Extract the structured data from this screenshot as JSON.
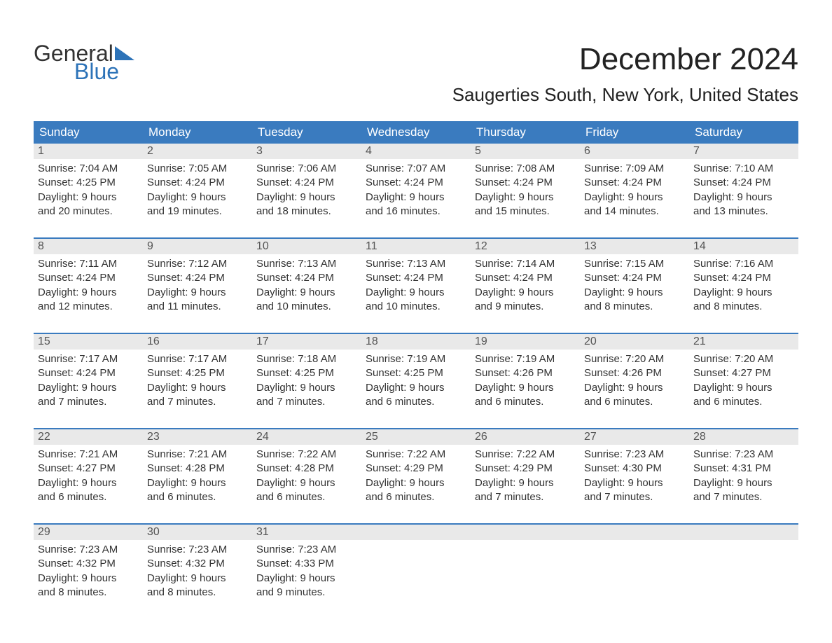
{
  "logo": {
    "text_top": "General",
    "text_bottom": "Blue",
    "flag_color": "#2d73b8"
  },
  "title": "December 2024",
  "location": "Saugerties South, New York, United States",
  "colors": {
    "header_bg": "#3a7bbf",
    "header_text": "#ffffff",
    "daynum_bg": "#e9e9e9",
    "week_border": "#3a7bbf",
    "body_text": "#333333"
  },
  "day_names": [
    "Sunday",
    "Monday",
    "Tuesday",
    "Wednesday",
    "Thursday",
    "Friday",
    "Saturday"
  ],
  "weeks": [
    [
      {
        "n": "1",
        "sr": "Sunrise: 7:04 AM",
        "ss": "Sunset: 4:25 PM",
        "dl1": "Daylight: 9 hours",
        "dl2": "and 20 minutes."
      },
      {
        "n": "2",
        "sr": "Sunrise: 7:05 AM",
        "ss": "Sunset: 4:24 PM",
        "dl1": "Daylight: 9 hours",
        "dl2": "and 19 minutes."
      },
      {
        "n": "3",
        "sr": "Sunrise: 7:06 AM",
        "ss": "Sunset: 4:24 PM",
        "dl1": "Daylight: 9 hours",
        "dl2": "and 18 minutes."
      },
      {
        "n": "4",
        "sr": "Sunrise: 7:07 AM",
        "ss": "Sunset: 4:24 PM",
        "dl1": "Daylight: 9 hours",
        "dl2": "and 16 minutes."
      },
      {
        "n": "5",
        "sr": "Sunrise: 7:08 AM",
        "ss": "Sunset: 4:24 PM",
        "dl1": "Daylight: 9 hours",
        "dl2": "and 15 minutes."
      },
      {
        "n": "6",
        "sr": "Sunrise: 7:09 AM",
        "ss": "Sunset: 4:24 PM",
        "dl1": "Daylight: 9 hours",
        "dl2": "and 14 minutes."
      },
      {
        "n": "7",
        "sr": "Sunrise: 7:10 AM",
        "ss": "Sunset: 4:24 PM",
        "dl1": "Daylight: 9 hours",
        "dl2": "and 13 minutes."
      }
    ],
    [
      {
        "n": "8",
        "sr": "Sunrise: 7:11 AM",
        "ss": "Sunset: 4:24 PM",
        "dl1": "Daylight: 9 hours",
        "dl2": "and 12 minutes."
      },
      {
        "n": "9",
        "sr": "Sunrise: 7:12 AM",
        "ss": "Sunset: 4:24 PM",
        "dl1": "Daylight: 9 hours",
        "dl2": "and 11 minutes."
      },
      {
        "n": "10",
        "sr": "Sunrise: 7:13 AM",
        "ss": "Sunset: 4:24 PM",
        "dl1": "Daylight: 9 hours",
        "dl2": "and 10 minutes."
      },
      {
        "n": "11",
        "sr": "Sunrise: 7:13 AM",
        "ss": "Sunset: 4:24 PM",
        "dl1": "Daylight: 9 hours",
        "dl2": "and 10 minutes."
      },
      {
        "n": "12",
        "sr": "Sunrise: 7:14 AM",
        "ss": "Sunset: 4:24 PM",
        "dl1": "Daylight: 9 hours",
        "dl2": "and 9 minutes."
      },
      {
        "n": "13",
        "sr": "Sunrise: 7:15 AM",
        "ss": "Sunset: 4:24 PM",
        "dl1": "Daylight: 9 hours",
        "dl2": "and 8 minutes."
      },
      {
        "n": "14",
        "sr": "Sunrise: 7:16 AM",
        "ss": "Sunset: 4:24 PM",
        "dl1": "Daylight: 9 hours",
        "dl2": "and 8 minutes."
      }
    ],
    [
      {
        "n": "15",
        "sr": "Sunrise: 7:17 AM",
        "ss": "Sunset: 4:24 PM",
        "dl1": "Daylight: 9 hours",
        "dl2": "and 7 minutes."
      },
      {
        "n": "16",
        "sr": "Sunrise: 7:17 AM",
        "ss": "Sunset: 4:25 PM",
        "dl1": "Daylight: 9 hours",
        "dl2": "and 7 minutes."
      },
      {
        "n": "17",
        "sr": "Sunrise: 7:18 AM",
        "ss": "Sunset: 4:25 PM",
        "dl1": "Daylight: 9 hours",
        "dl2": "and 7 minutes."
      },
      {
        "n": "18",
        "sr": "Sunrise: 7:19 AM",
        "ss": "Sunset: 4:25 PM",
        "dl1": "Daylight: 9 hours",
        "dl2": "and 6 minutes."
      },
      {
        "n": "19",
        "sr": "Sunrise: 7:19 AM",
        "ss": "Sunset: 4:26 PM",
        "dl1": "Daylight: 9 hours",
        "dl2": "and 6 minutes."
      },
      {
        "n": "20",
        "sr": "Sunrise: 7:20 AM",
        "ss": "Sunset: 4:26 PM",
        "dl1": "Daylight: 9 hours",
        "dl2": "and 6 minutes."
      },
      {
        "n": "21",
        "sr": "Sunrise: 7:20 AM",
        "ss": "Sunset: 4:27 PM",
        "dl1": "Daylight: 9 hours",
        "dl2": "and 6 minutes."
      }
    ],
    [
      {
        "n": "22",
        "sr": "Sunrise: 7:21 AM",
        "ss": "Sunset: 4:27 PM",
        "dl1": "Daylight: 9 hours",
        "dl2": "and 6 minutes."
      },
      {
        "n": "23",
        "sr": "Sunrise: 7:21 AM",
        "ss": "Sunset: 4:28 PM",
        "dl1": "Daylight: 9 hours",
        "dl2": "and 6 minutes."
      },
      {
        "n": "24",
        "sr": "Sunrise: 7:22 AM",
        "ss": "Sunset: 4:28 PM",
        "dl1": "Daylight: 9 hours",
        "dl2": "and 6 minutes."
      },
      {
        "n": "25",
        "sr": "Sunrise: 7:22 AM",
        "ss": "Sunset: 4:29 PM",
        "dl1": "Daylight: 9 hours",
        "dl2": "and 6 minutes."
      },
      {
        "n": "26",
        "sr": "Sunrise: 7:22 AM",
        "ss": "Sunset: 4:29 PM",
        "dl1": "Daylight: 9 hours",
        "dl2": "and 7 minutes."
      },
      {
        "n": "27",
        "sr": "Sunrise: 7:23 AM",
        "ss": "Sunset: 4:30 PM",
        "dl1": "Daylight: 9 hours",
        "dl2": "and 7 minutes."
      },
      {
        "n": "28",
        "sr": "Sunrise: 7:23 AM",
        "ss": "Sunset: 4:31 PM",
        "dl1": "Daylight: 9 hours",
        "dl2": "and 7 minutes."
      }
    ],
    [
      {
        "n": "29",
        "sr": "Sunrise: 7:23 AM",
        "ss": "Sunset: 4:32 PM",
        "dl1": "Daylight: 9 hours",
        "dl2": "and 8 minutes."
      },
      {
        "n": "30",
        "sr": "Sunrise: 7:23 AM",
        "ss": "Sunset: 4:32 PM",
        "dl1": "Daylight: 9 hours",
        "dl2": "and 8 minutes."
      },
      {
        "n": "31",
        "sr": "Sunrise: 7:23 AM",
        "ss": "Sunset: 4:33 PM",
        "dl1": "Daylight: 9 hours",
        "dl2": "and 9 minutes."
      },
      null,
      null,
      null,
      null
    ]
  ]
}
